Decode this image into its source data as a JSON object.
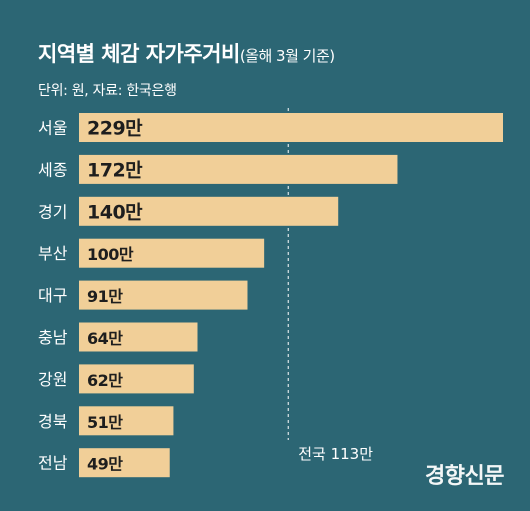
{
  "header": {
    "title": "지역별 체감 자가주거비",
    "subtitle": "(올해 3월 기준)",
    "source": "단위: 원, 자료: 한국은행"
  },
  "brand": "경향신문",
  "chart_data": {
    "type": "bar",
    "orientation": "horizontal",
    "unit": "원",
    "categories": [
      "서울",
      "세종",
      "경기",
      "부산",
      "대구",
      "충남",
      "강원",
      "경북",
      "전남"
    ],
    "values": [
      2290000,
      1720000,
      1400000,
      1000000,
      910000,
      640000,
      620000,
      510000,
      490000
    ],
    "value_labels": [
      "229만",
      "172만",
      "140만",
      "100만",
      "91만",
      "64만",
      "62만",
      "51만",
      "49만"
    ],
    "reference_line": {
      "value": 1130000,
      "label": "전국 113만"
    },
    "bar_color": "#f1cf98",
    "grid": false
  }
}
